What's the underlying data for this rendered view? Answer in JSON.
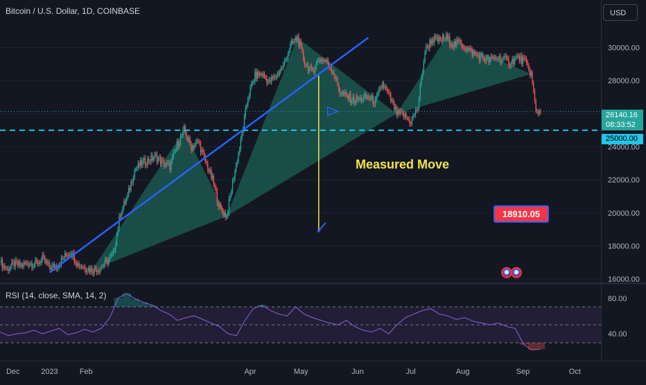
{
  "header": {
    "symbol_title": "Bitcoin / U.S. Dollar, 1D, COINBASE",
    "currency_button": "USD"
  },
  "rsi": {
    "title": "RSI (14, close, SMA, 14, 2)",
    "ticks": [
      "80.00",
      "40.00"
    ]
  },
  "annotations": {
    "measured_move": "Measured Move",
    "target_label": "18910.05"
  },
  "price_scale": {
    "current_price": "26140.16",
    "countdown": "08:33:52",
    "level_label": "25000.00"
  },
  "colors": {
    "background": "#131722",
    "up": "#26a69a",
    "down": "#ef5350",
    "trendline": "#2962ff",
    "dashed_level": "#22c5e8",
    "measured_move_line": "#f7e34a",
    "pattern_fill": "#1f7a68",
    "rsi_line": "#7e57c2",
    "rsi_band": "#2b2342",
    "target_badge": "#f23645"
  },
  "icons": [
    "us-flag-event-icon",
    "us-flag-event-icon"
  ],
  "chart_data": {
    "type": "candlestick",
    "title": "Bitcoin / U.S. Dollar, 1D, COINBASE",
    "ylim": [
      15800,
      31700
    ],
    "y_ticks": [
      16000,
      18000,
      20000,
      22000,
      24000,
      26000,
      28000,
      30000
    ],
    "y_tick_labels": [
      "16000.00",
      "18000.00",
      "20000.00",
      "22000.00",
      "24000.00",
      "26000.00",
      "28000.00",
      "30000.00"
    ],
    "x_ticks": [
      "Dec",
      "2023",
      "Feb",
      "Apr",
      "May",
      "Jun",
      "Jul",
      "Aug",
      "Sep",
      "Oct"
    ],
    "price_path": [
      [
        0,
        17000
      ],
      [
        6,
        16600
      ],
      [
        12,
        16900
      ],
      [
        18,
        16800
      ],
      [
        24,
        17000
      ],
      [
        30,
        16900
      ],
      [
        36,
        17200
      ],
      [
        42,
        16700
      ],
      [
        48,
        16800
      ],
      [
        54,
        17300
      ],
      [
        60,
        17700
      ],
      [
        66,
        16900
      ],
      [
        72,
        16700
      ],
      [
        78,
        16550
      ],
      [
        84,
        16650
      ],
      [
        90,
        17000
      ],
      [
        96,
        17500
      ],
      [
        102,
        20000
      ],
      [
        108,
        21000
      ],
      [
        114,
        22600
      ],
      [
        120,
        23000
      ],
      [
        126,
        23200
      ],
      [
        132,
        23400
      ],
      [
        138,
        23000
      ],
      [
        144,
        22800
      ],
      [
        150,
        24100
      ],
      [
        156,
        25000
      ],
      [
        162,
        24000
      ],
      [
        168,
        24300
      ],
      [
        174,
        23100
      ],
      [
        180,
        22000
      ],
      [
        186,
        20300
      ],
      [
        192,
        19800
      ],
      [
        198,
        22200
      ],
      [
        204,
        24300
      ],
      [
        210,
        27000
      ],
      [
        216,
        28300
      ],
      [
        222,
        28400
      ],
      [
        228,
        27900
      ],
      [
        234,
        28300
      ],
      [
        240,
        28900
      ],
      [
        246,
        30100
      ],
      [
        252,
        30600
      ],
      [
        258,
        29100
      ],
      [
        264,
        28500
      ],
      [
        270,
        29300
      ],
      [
        276,
        29200
      ],
      [
        282,
        28600
      ],
      [
        288,
        27300
      ],
      [
        294,
        27000
      ],
      [
        300,
        26800
      ],
      [
        306,
        26900
      ],
      [
        312,
        27000
      ],
      [
        318,
        26700
      ],
      [
        324,
        27800
      ],
      [
        330,
        27000
      ],
      [
        336,
        26000
      ],
      [
        342,
        25900
      ],
      [
        348,
        25500
      ],
      [
        354,
        26400
      ],
      [
        360,
        29800
      ],
      [
        366,
        30500
      ],
      [
        372,
        30400
      ],
      [
        378,
        30600
      ],
      [
        384,
        30200
      ],
      [
        390,
        30300
      ],
      [
        396,
        29900
      ],
      [
        402,
        29600
      ],
      [
        408,
        29400
      ],
      [
        414,
        29200
      ],
      [
        420,
        29400
      ],
      [
        426,
        29300
      ],
      [
        432,
        29100
      ],
      [
        438,
        29400
      ],
      [
        444,
        29200
      ],
      [
        450,
        28400
      ],
      [
        454,
        26100
      ],
      [
        458,
        26140
      ]
    ],
    "price_path_x_unit": "days since 2022-11-20",
    "trendline": {
      "from": [
        "Jan 1 2023",
        16400
      ],
      "to": [
        "Sep 28 2023",
        30600
      ]
    },
    "horizontal_level": 25000,
    "measured_move": {
      "from": 28300,
      "to": 18910.05,
      "date": "Aug 17 2023"
    },
    "current_price": 26140.16,
    "rsi": {
      "ylim": [
        10,
        95
      ],
      "bands": [
        30,
        70
      ],
      "midline": 50,
      "values": [
        42,
        38,
        40,
        41,
        44,
        40,
        43,
        46,
        39,
        41,
        45,
        42,
        46,
        58,
        80,
        85,
        79,
        75,
        72,
        66,
        62,
        55,
        58,
        60,
        56,
        52,
        48,
        40,
        38,
        55,
        68,
        72,
        66,
        62,
        60,
        70,
        62,
        58,
        55,
        52,
        50,
        55,
        48,
        44,
        42,
        46,
        40,
        50,
        58,
        62,
        66,
        68,
        62,
        60,
        56,
        58,
        54,
        52,
        50,
        52,
        48,
        46,
        28,
        22,
        23
      ]
    }
  }
}
